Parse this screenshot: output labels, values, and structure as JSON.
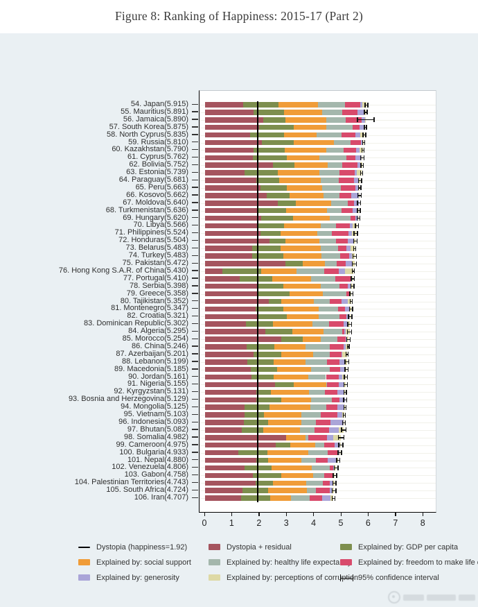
{
  "title": "Figure 8: Ranking of Happiness: 2015-17 (Part 2)",
  "axis": {
    "min": 0,
    "max": 8,
    "ticks": [
      "0",
      "1",
      "2",
      "3",
      "4",
      "5",
      "6",
      "7",
      "8"
    ]
  },
  "colors": {
    "dystopia_line": "#000000",
    "dystopia_residual": "#a5545e",
    "gdp_per_capita": "#7d8e4e",
    "social_support": "#f09c38",
    "healthy_life_expectancy": "#a4b7ac",
    "freedom": "#d84a6b",
    "generosity": "#aaa5d8",
    "perceptions_of_corruption": "#ded9a5",
    "ci": "#161616",
    "panel_background": "#eaf0f3",
    "plot_background": "#ffffff"
  },
  "legend": {
    "columns": [
      [
        {
          "key": "dystopia_line",
          "type": "line",
          "label": "Dystopia (happiness=1.92)"
        },
        {
          "key": "social_support",
          "type": "swatch",
          "label": "Explained by: social support"
        },
        {
          "key": "generosity",
          "type": "swatch",
          "label": "Explained by: generosity"
        }
      ],
      [
        {
          "key": "dystopia_residual",
          "type": "swatch",
          "label": "Dystopia + residual"
        },
        {
          "key": "healthy_life_expectancy",
          "type": "swatch",
          "label": "Explained by: healthy life expectancy"
        },
        {
          "key": "perceptions_of_corruption",
          "type": "swatch",
          "label": "Explained by: perceptions of corruption"
        }
      ],
      [
        {
          "key": "gdp_per_capita",
          "type": "swatch",
          "label": "Explained by: GDP per capita"
        },
        {
          "key": "freedom",
          "type": "swatch",
          "label": "Explained by: freedom to make life choices"
        },
        {
          "key": "ci",
          "type": "errorbar",
          "label": "95% confidence interval"
        }
      ]
    ]
  },
  "watermark": {
    "legible": false,
    "description": "faint gray logo watermark, bottom-right"
  },
  "chart_data": {
    "type": "bar",
    "orientation": "horizontal",
    "stacked": true,
    "title": "Figure 8: Ranking of Happiness: 2015-17 (Part 2)",
    "xlabel": "",
    "ylabel": "",
    "xlim": [
      0,
      8
    ],
    "grid": "horizontal-faint",
    "dystopia_line_value": 1.92,
    "series_order": [
      "dystopia_residual",
      "gdp_per_capita",
      "social_support",
      "healthy_life_expectancy",
      "freedom",
      "generosity",
      "perceptions_of_corruption"
    ],
    "row_columns": [
      "rank",
      "country",
      "score",
      "dystopia_residual",
      "gdp_per_capita",
      "social_support",
      "healthy_life_expectancy",
      "freedom",
      "generosity",
      "perceptions_of_corruption",
      "ci_half_width"
    ],
    "label_format": "{rank}. {country}({score})",
    "rows": [
      [
        54,
        "Japan",
        5.915,
        1.389,
        1.294,
        1.462,
        0.988,
        0.553,
        0.079,
        0.15,
        0.065
      ],
      [
        55,
        "Mauritius",
        5.891,
        1.779,
        1.12,
        1.402,
        0.725,
        0.557,
        0.249,
        0.059,
        0.07
      ],
      [
        56,
        "Jamaica",
        5.89,
        2.123,
        0.819,
        1.493,
        0.717,
        0.575,
        0.136,
        0.027,
        0.32
      ],
      [
        57,
        "South Korea",
        5.875,
        1.98,
        1.266,
        1.204,
        0.955,
        0.244,
        0.175,
        0.051,
        0.06
      ],
      [
        58,
        "North Cyprus",
        5.835,
        1.658,
        1.229,
        1.211,
        0.909,
        0.495,
        0.179,
        0.154,
        0.07
      ],
      [
        59,
        "Russia",
        5.81,
        2.092,
        1.151,
        1.479,
        0.599,
        0.399,
        0.065,
        0.025,
        0.055
      ],
      [
        60,
        "Kazakhstan",
        5.79,
        1.777,
        1.143,
        1.516,
        0.631,
        0.454,
        0.148,
        0.121,
        0.055
      ],
      [
        61,
        "Cyprus",
        5.762,
        1.759,
        1.229,
        1.191,
        0.999,
        0.334,
        0.223,
        0.027,
        0.075
      ],
      [
        62,
        "Bolivia",
        5.752,
        2.498,
        0.783,
        1.211,
        0.531,
        0.565,
        0.098,
        0.066,
        0.06
      ],
      [
        63,
        "Estonia",
        5.739,
        1.457,
        1.2,
        1.532,
        0.737,
        0.553,
        0.086,
        0.174,
        0.055
      ],
      [
        64,
        "Paraguay",
        5.681,
        1.872,
        0.843,
        1.52,
        0.658,
        0.56,
        0.148,
        0.08,
        0.07
      ],
      [
        65,
        "Peru",
        5.663,
        2.041,
        0.963,
        1.274,
        0.709,
        0.52,
        0.099,
        0.057,
        0.065
      ],
      [
        66,
        "Kosovo",
        5.662,
        2.254,
        0.855,
        1.23,
        0.578,
        0.448,
        0.274,
        0.023,
        0.08
      ],
      [
        67,
        "Moldova",
        5.64,
        2.659,
        0.657,
        1.301,
        0.62,
        0.232,
        0.171,
        0.0,
        0.07
      ],
      [
        68,
        "Turkmenistan",
        5.636,
        1.954,
        1.024,
        1.489,
        0.521,
        0.418,
        0.202,
        0.028,
        0.065
      ],
      [
        69,
        "Hungary",
        5.62,
        2.06,
        1.171,
        1.331,
        0.758,
        0.199,
        0.081,
        0.02,
        0.07
      ],
      [
        70,
        "Libya",
        5.566,
        1.914,
        0.985,
        1.35,
        0.553,
        0.496,
        0.116,
        0.152,
        0.08
      ],
      [
        71,
        "Philippines",
        5.524,
        2.043,
        0.712,
        1.365,
        0.519,
        0.618,
        0.126,
        0.141,
        0.08
      ],
      [
        72,
        "Honduras",
        5.504,
        2.351,
        0.597,
        1.24,
        0.621,
        0.42,
        0.196,
        0.079,
        0.08
      ],
      [
        73,
        "Belarus",
        5.483,
        1.725,
        1.039,
        1.466,
        0.647,
        0.295,
        0.155,
        0.156,
        0.06
      ],
      [
        74,
        "Turkey",
        5.483,
        1.73,
        1.148,
        1.38,
        0.686,
        0.324,
        0.106,
        0.109,
        0.075
      ],
      [
        75,
        "Pakistan",
        5.472,
        2.938,
        0.652,
        0.81,
        0.424,
        0.334,
        0.216,
        0.098,
        0.09
      ],
      [
        76,
        "Hong Kong S.A.R. of China",
        5.43,
        0.644,
        1.405,
        1.29,
        1.03,
        0.524,
        0.246,
        0.291,
        0.055
      ],
      [
        77,
        "Portugal",
        5.41,
        1.275,
        1.188,
        1.429,
        0.884,
        0.562,
        0.055,
        0.017,
        0.075
      ],
      [
        78,
        "Serbia",
        5.398,
        1.904,
        0.975,
        1.369,
        0.685,
        0.288,
        0.134,
        0.043,
        0.08
      ],
      [
        79,
        "Greece",
        5.358,
        1.948,
        1.154,
        1.202,
        0.879,
        0.131,
        0.0,
        0.044,
        0.075
      ],
      [
        80,
        "Tajikistan",
        5.352,
        2.325,
        0.474,
        1.175,
        0.598,
        0.418,
        0.23,
        0.132,
        0.06
      ],
      [
        81,
        "Montenegro",
        5.347,
        1.851,
        1.024,
        1.279,
        0.729,
        0.243,
        0.153,
        0.068,
        0.08
      ],
      [
        82,
        "Croatia",
        5.321,
        1.908,
        1.098,
        1.161,
        0.768,
        0.24,
        0.123,
        0.023,
        0.08
      ],
      [
        83,
        "Dominican Republic",
        5.302,
        1.501,
        0.982,
        1.441,
        0.614,
        0.55,
        0.113,
        0.101,
        0.09
      ],
      [
        84,
        "Algeria",
        5.295,
        2.208,
        0.979,
        1.154,
        0.687,
        0.077,
        0.055,
        0.135,
        0.09
      ],
      [
        85,
        "Morocco",
        5.254,
        2.784,
        0.796,
        0.648,
        0.611,
        0.309,
        0.033,
        0.073,
        0.085
      ],
      [
        86,
        "China",
        5.246,
        1.52,
        1.029,
        1.125,
        0.893,
        0.521,
        0.058,
        0.1,
        0.055
      ],
      [
        87,
        "Azerbaijan",
        5.201,
        1.772,
        1.024,
        1.161,
        0.603,
        0.43,
        0.035,
        0.176,
        0.06
      ],
      [
        88,
        "Lebanon",
        5.199,
        1.552,
        0.965,
        1.164,
        0.785,
        0.455,
        0.216,
        0.062,
        0.09
      ],
      [
        89,
        "Macedonia",
        5.185,
        1.677,
        0.959,
        1.239,
        0.691,
        0.394,
        0.173,
        0.052,
        0.08
      ],
      [
        90,
        "Jordan",
        5.161,
        1.697,
        0.822,
        1.265,
        0.645,
        0.468,
        0.13,
        0.134,
        0.08
      ],
      [
        91,
        "Nigeria",
        5.155,
        2.569,
        0.689,
        1.172,
        0.043,
        0.426,
        0.215,
        0.041,
        0.085
      ],
      [
        92,
        "Kyrgyzstan",
        5.131,
        1.87,
        0.53,
        1.4,
        0.591,
        0.469,
        0.244,
        0.027,
        0.065
      ],
      [
        93,
        "Bosnia and Herzegovina",
        5.129,
        1.882,
        0.915,
        1.078,
        0.758,
        0.28,
        0.216,
        0.0,
        0.075
      ],
      [
        94,
        "Mongolia",
        5.125,
        1.439,
        0.914,
        1.517,
        0.575,
        0.395,
        0.253,
        0.032,
        0.06
      ],
      [
        95,
        "Vietnam",
        5.103,
        1.447,
        0.715,
        1.365,
        0.702,
        0.618,
        0.177,
        0.079,
        0.06
      ],
      [
        96,
        "Indonesia",
        5.093,
        1.417,
        0.899,
        1.215,
        0.522,
        0.538,
        0.484,
        0.018,
        0.065
      ],
      [
        97,
        "Bhutan",
        5.082,
        1.348,
        0.796,
        1.335,
        0.527,
        0.541,
        0.364,
        0.171,
        0.1
      ],
      [
        98,
        "Somalia",
        4.982,
        2.961,
        0.0,
        0.712,
        0.115,
        0.674,
        0.238,
        0.282,
        0.12
      ],
      [
        99,
        "Cameroon",
        4.975,
        2.58,
        0.549,
        0.91,
        0.331,
        0.381,
        0.187,
        0.037,
        0.095
      ],
      [
        100,
        "Bulgaria",
        4.933,
        1.22,
        1.054,
        1.515,
        0.712,
        0.359,
        0.064,
        0.009,
        0.08
      ],
      [
        101,
        "Nepal",
        4.88,
        1.876,
        0.426,
        1.228,
        0.527,
        0.439,
        0.306,
        0.078,
        0.075
      ],
      [
        102,
        "Venezuela",
        4.806,
        1.443,
        0.996,
        1.469,
        0.657,
        0.133,
        0.056,
        0.052,
        0.085
      ],
      [
        103,
        "Gabon",
        4.758,
        1.75,
        1.036,
        1.164,
        0.415,
        0.295,
        0.043,
        0.055,
        0.08
      ],
      [
        104,
        "Palestinian Territories",
        4.743,
        1.854,
        0.642,
        1.217,
        0.602,
        0.266,
        0.086,
        0.076,
        0.075
      ],
      [
        105,
        "South Africa",
        4.724,
        1.369,
        0.94,
        1.41,
        0.33,
        0.516,
        0.103,
        0.056,
        0.09
      ],
      [
        106,
        "Iran",
        4.707,
        1.32,
        1.059,
        0.771,
        0.691,
        0.459,
        0.282,
        0.125,
        0.07
      ]
    ]
  }
}
